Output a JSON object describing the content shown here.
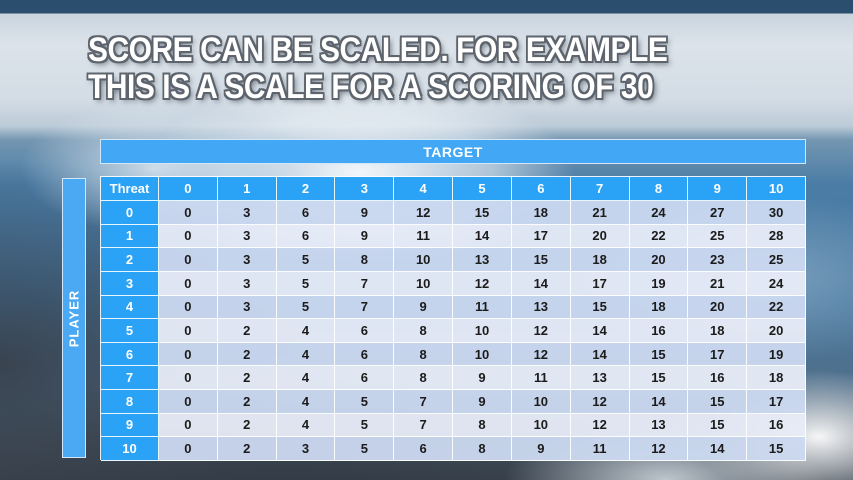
{
  "slide": {
    "title_line1": "SCORE CAN BE SCALED. FOR EXAMPLE",
    "title_line2": "THIS IS A SCALE FOR A SCORING OF 30"
  },
  "table": {
    "target_label": "TARGET",
    "player_label": "PLAYER",
    "corner_label": "Threat",
    "column_headers": [
      "0",
      "1",
      "2",
      "3",
      "4",
      "5",
      "6",
      "7",
      "8",
      "9",
      "10"
    ],
    "row_headers": [
      "0",
      "1",
      "2",
      "3",
      "4",
      "5",
      "6",
      "7",
      "8",
      "9",
      "10"
    ],
    "rows": [
      [
        0,
        3,
        6,
        9,
        12,
        15,
        18,
        21,
        24,
        27,
        30
      ],
      [
        0,
        3,
        6,
        9,
        11,
        14,
        17,
        20,
        22,
        25,
        28
      ],
      [
        0,
        3,
        5,
        8,
        10,
        13,
        15,
        18,
        20,
        23,
        25
      ],
      [
        0,
        3,
        5,
        7,
        10,
        12,
        14,
        17,
        19,
        21,
        24
      ],
      [
        0,
        3,
        5,
        7,
        9,
        11,
        13,
        15,
        18,
        20,
        22
      ],
      [
        0,
        2,
        4,
        6,
        8,
        10,
        12,
        14,
        16,
        18,
        20
      ],
      [
        0,
        2,
        4,
        6,
        8,
        10,
        12,
        14,
        15,
        17,
        19
      ],
      [
        0,
        2,
        4,
        6,
        8,
        9,
        11,
        13,
        15,
        16,
        18
      ],
      [
        0,
        2,
        4,
        5,
        7,
        9,
        10,
        12,
        14,
        15,
        17
      ],
      [
        0,
        2,
        4,
        5,
        7,
        8,
        10,
        12,
        13,
        15,
        16
      ],
      [
        0,
        2,
        3,
        5,
        6,
        8,
        9,
        11,
        12,
        14,
        15
      ]
    ]
  },
  "colors": {
    "header_blue": "#2aa2f5",
    "banner_blue": "#42a8f6",
    "row_even": "#cbd9f0",
    "row_odd": "#e8ecf8",
    "cell_text": "#1b1b1b",
    "title_text": "#ffffff",
    "title_outline": "#5d646d"
  }
}
